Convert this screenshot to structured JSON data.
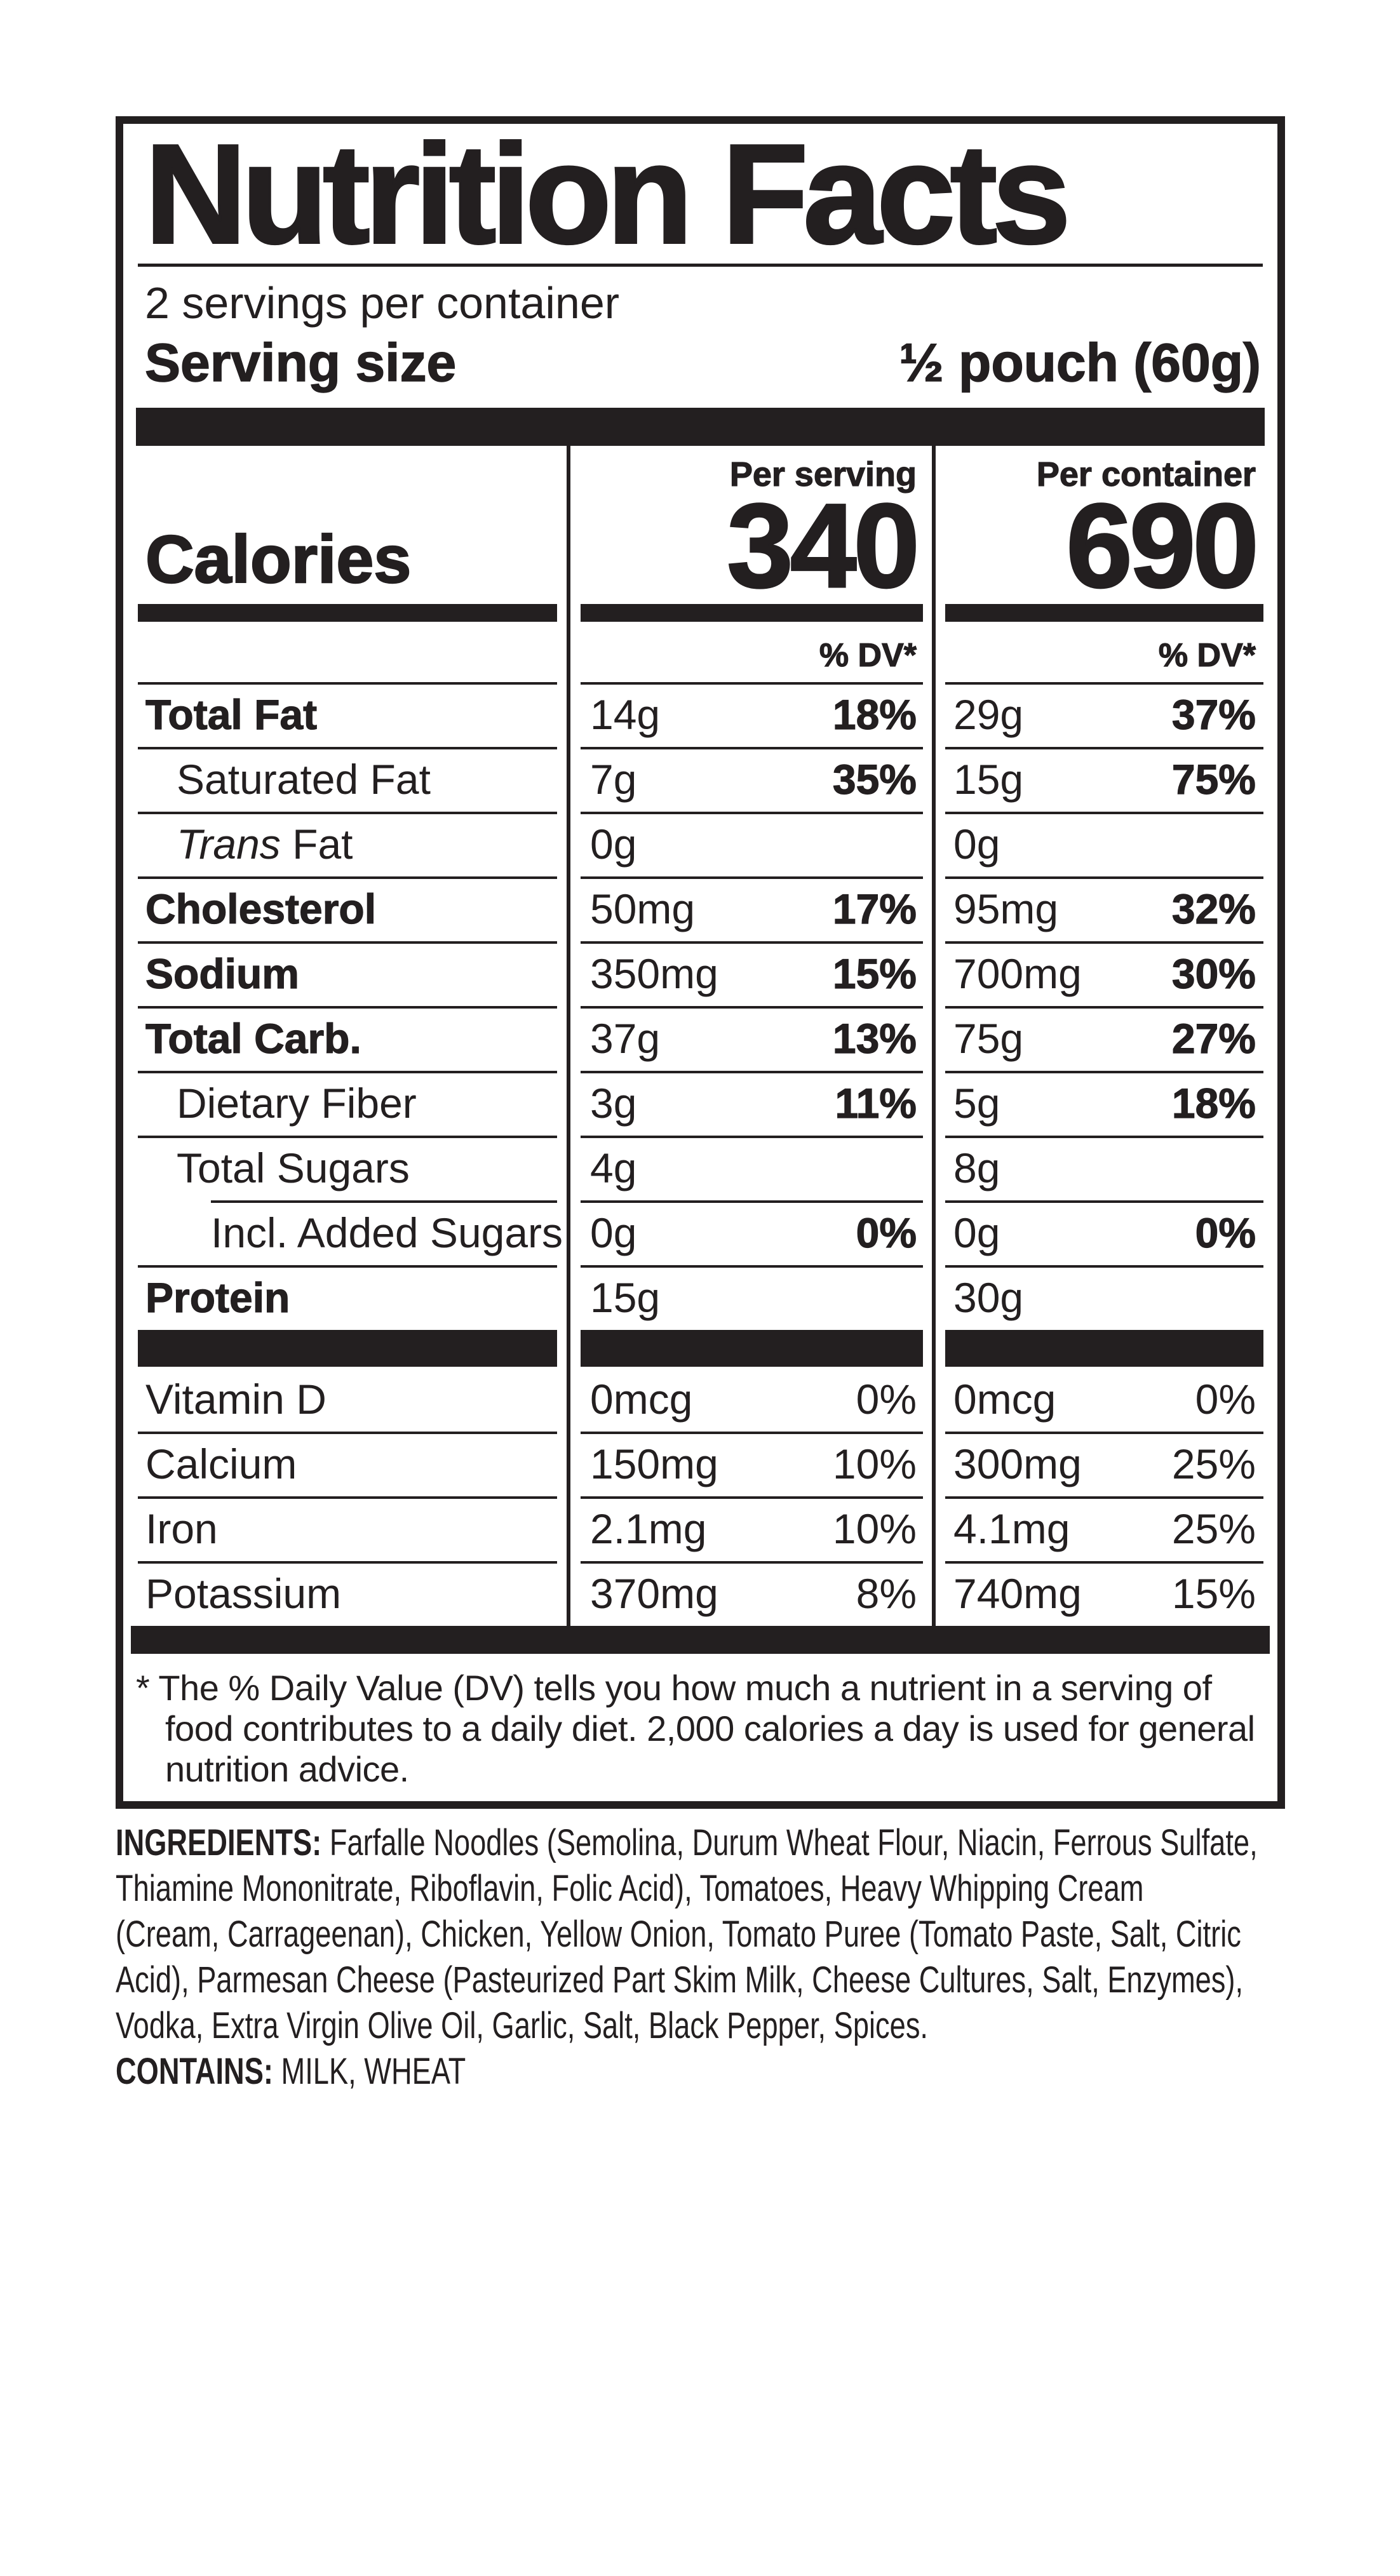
{
  "colors": {
    "ink": "#231f20",
    "background": "#ffffff"
  },
  "label": {
    "title": "Nutrition Facts",
    "servings_per_container": "2 servings per container",
    "serving_size_label": "Serving size",
    "serving_size_value": "½ pouch (60g)",
    "col_headers": {
      "serving": "Per serving",
      "container": "Per container"
    },
    "calories": {
      "label": "Calories",
      "per_serving": "340",
      "per_container": "690"
    },
    "dv_header": "% DV*",
    "main_rows": [
      {
        "name": "Total Fat",
        "bold": true,
        "indent": 0,
        "sv": "14g",
        "sdv": "18%",
        "cv": "29g",
        "cdv": "37%"
      },
      {
        "name": "Saturated Fat",
        "bold": false,
        "indent": 1,
        "sv": "7g",
        "sdv": "35%",
        "cv": "15g",
        "cdv": "75%"
      },
      {
        "name": "Fat",
        "italic_prefix": "Trans",
        "bold": false,
        "indent": 1,
        "sv": "0g",
        "sdv": "",
        "cv": "0g",
        "cdv": ""
      },
      {
        "name": "Cholesterol",
        "bold": true,
        "indent": 0,
        "sv": "50mg",
        "sdv": "17%",
        "cv": "95mg",
        "cdv": "32%"
      },
      {
        "name": "Sodium",
        "bold": true,
        "indent": 0,
        "sv": "350mg",
        "sdv": "15%",
        "cv": "700mg",
        "cdv": "30%"
      },
      {
        "name": "Total Carb.",
        "bold": true,
        "indent": 0,
        "sv": "37g",
        "sdv": "13%",
        "cv": "75g",
        "cdv": "27%"
      },
      {
        "name": "Dietary Fiber",
        "bold": false,
        "indent": 1,
        "sv": "3g",
        "sdv": "11%",
        "cv": "5g",
        "cdv": "18%"
      },
      {
        "name": "Total Sugars",
        "bold": false,
        "indent": 1,
        "sv": "4g",
        "sdv": "",
        "cv": "8g",
        "cdv": ""
      },
      {
        "name": "Incl. Added Sugars",
        "bold": false,
        "indent": 2,
        "line_indent": true,
        "sv": "0g",
        "sdv": "0%",
        "cv": "0g",
        "cdv": "0%"
      },
      {
        "name": "Protein",
        "bold": true,
        "indent": 0,
        "sv": "15g",
        "sdv": "",
        "cv": "30g",
        "cdv": ""
      }
    ],
    "vitamin_rows": [
      {
        "name": "Vitamin D",
        "sv": "0mcg",
        "sdv": "0%",
        "cv": "0mcg",
        "cdv": "0%"
      },
      {
        "name": "Calcium",
        "sv": "150mg",
        "sdv": "10%",
        "cv": "300mg",
        "cdv": "25%"
      },
      {
        "name": "Iron",
        "sv": "2.1mg",
        "sdv": "10%",
        "cv": "4.1mg",
        "cdv": "25%"
      },
      {
        "name": "Potassium",
        "sv": "370mg",
        "sdv": "8%",
        "cv": "740mg",
        "cdv": "15%"
      }
    ],
    "footnote": "* The % Daily Value (DV) tells you how much a nutrient in a serving of\nfood contributes to a daily diet. 2,000 calories a day is used for general\nnutrition advice."
  },
  "ingredients": {
    "label": "INGREDIENTS:",
    "text": "Farfalle Noodles (Semolina, Durum Wheat Flour, Niacin, Ferrous Sulfate,\nThiamine Mononitrate, Riboflavin, Folic Acid), Tomatoes, Heavy Whipping Cream\n(Cream, Carrageenan), Chicken, Yellow Onion, Tomato Puree (Tomato Paste, Salt, Citric\nAcid), Parmesan Cheese (Pasteurized Part Skim Milk, Cheese Cultures, Salt, Enzymes),\nVodka, Extra Virgin Olive Oil, Garlic, Salt, Black Pepper, Spices.",
    "contains_label": "CONTAINS:",
    "contains_text": "MILK, WHEAT"
  }
}
